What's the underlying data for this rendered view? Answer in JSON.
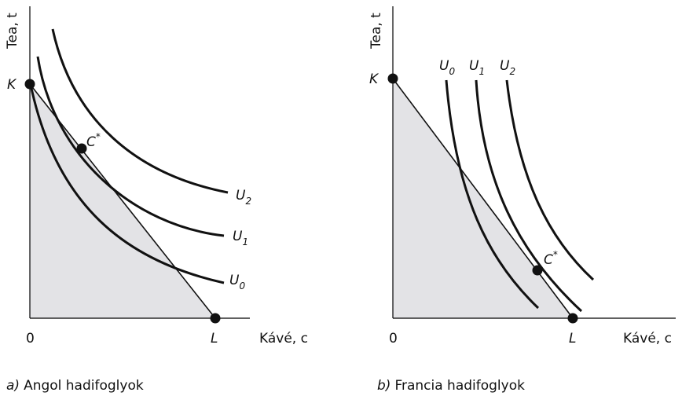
{
  "panels": [
    {
      "y_axis_label": "Tea, t",
      "x_axis_label": "Kávé, c",
      "origin": "0",
      "point_k": "K",
      "point_l": "L",
      "point_c": {
        "letter": "C",
        "sup": "*"
      },
      "curves": [
        {
          "letter": "U",
          "sub": "0"
        },
        {
          "letter": "U",
          "sub": "1"
        },
        {
          "letter": "U",
          "sub": "2"
        }
      ],
      "caption_letter": "a)",
      "caption": "Angol hadifoglyok"
    },
    {
      "y_axis_label": "Tea, t",
      "x_axis_label": "Kávé, c",
      "origin": "0",
      "point_k": "K",
      "point_l": "L",
      "point_c": {
        "letter": "C",
        "sup": "*"
      },
      "curves": [
        {
          "letter": "U",
          "sub": "0"
        },
        {
          "letter": "U",
          "sub": "1"
        },
        {
          "letter": "U",
          "sub": "2"
        }
      ],
      "caption_letter": "b)",
      "caption": "Francia hadifoglyok"
    }
  ]
}
